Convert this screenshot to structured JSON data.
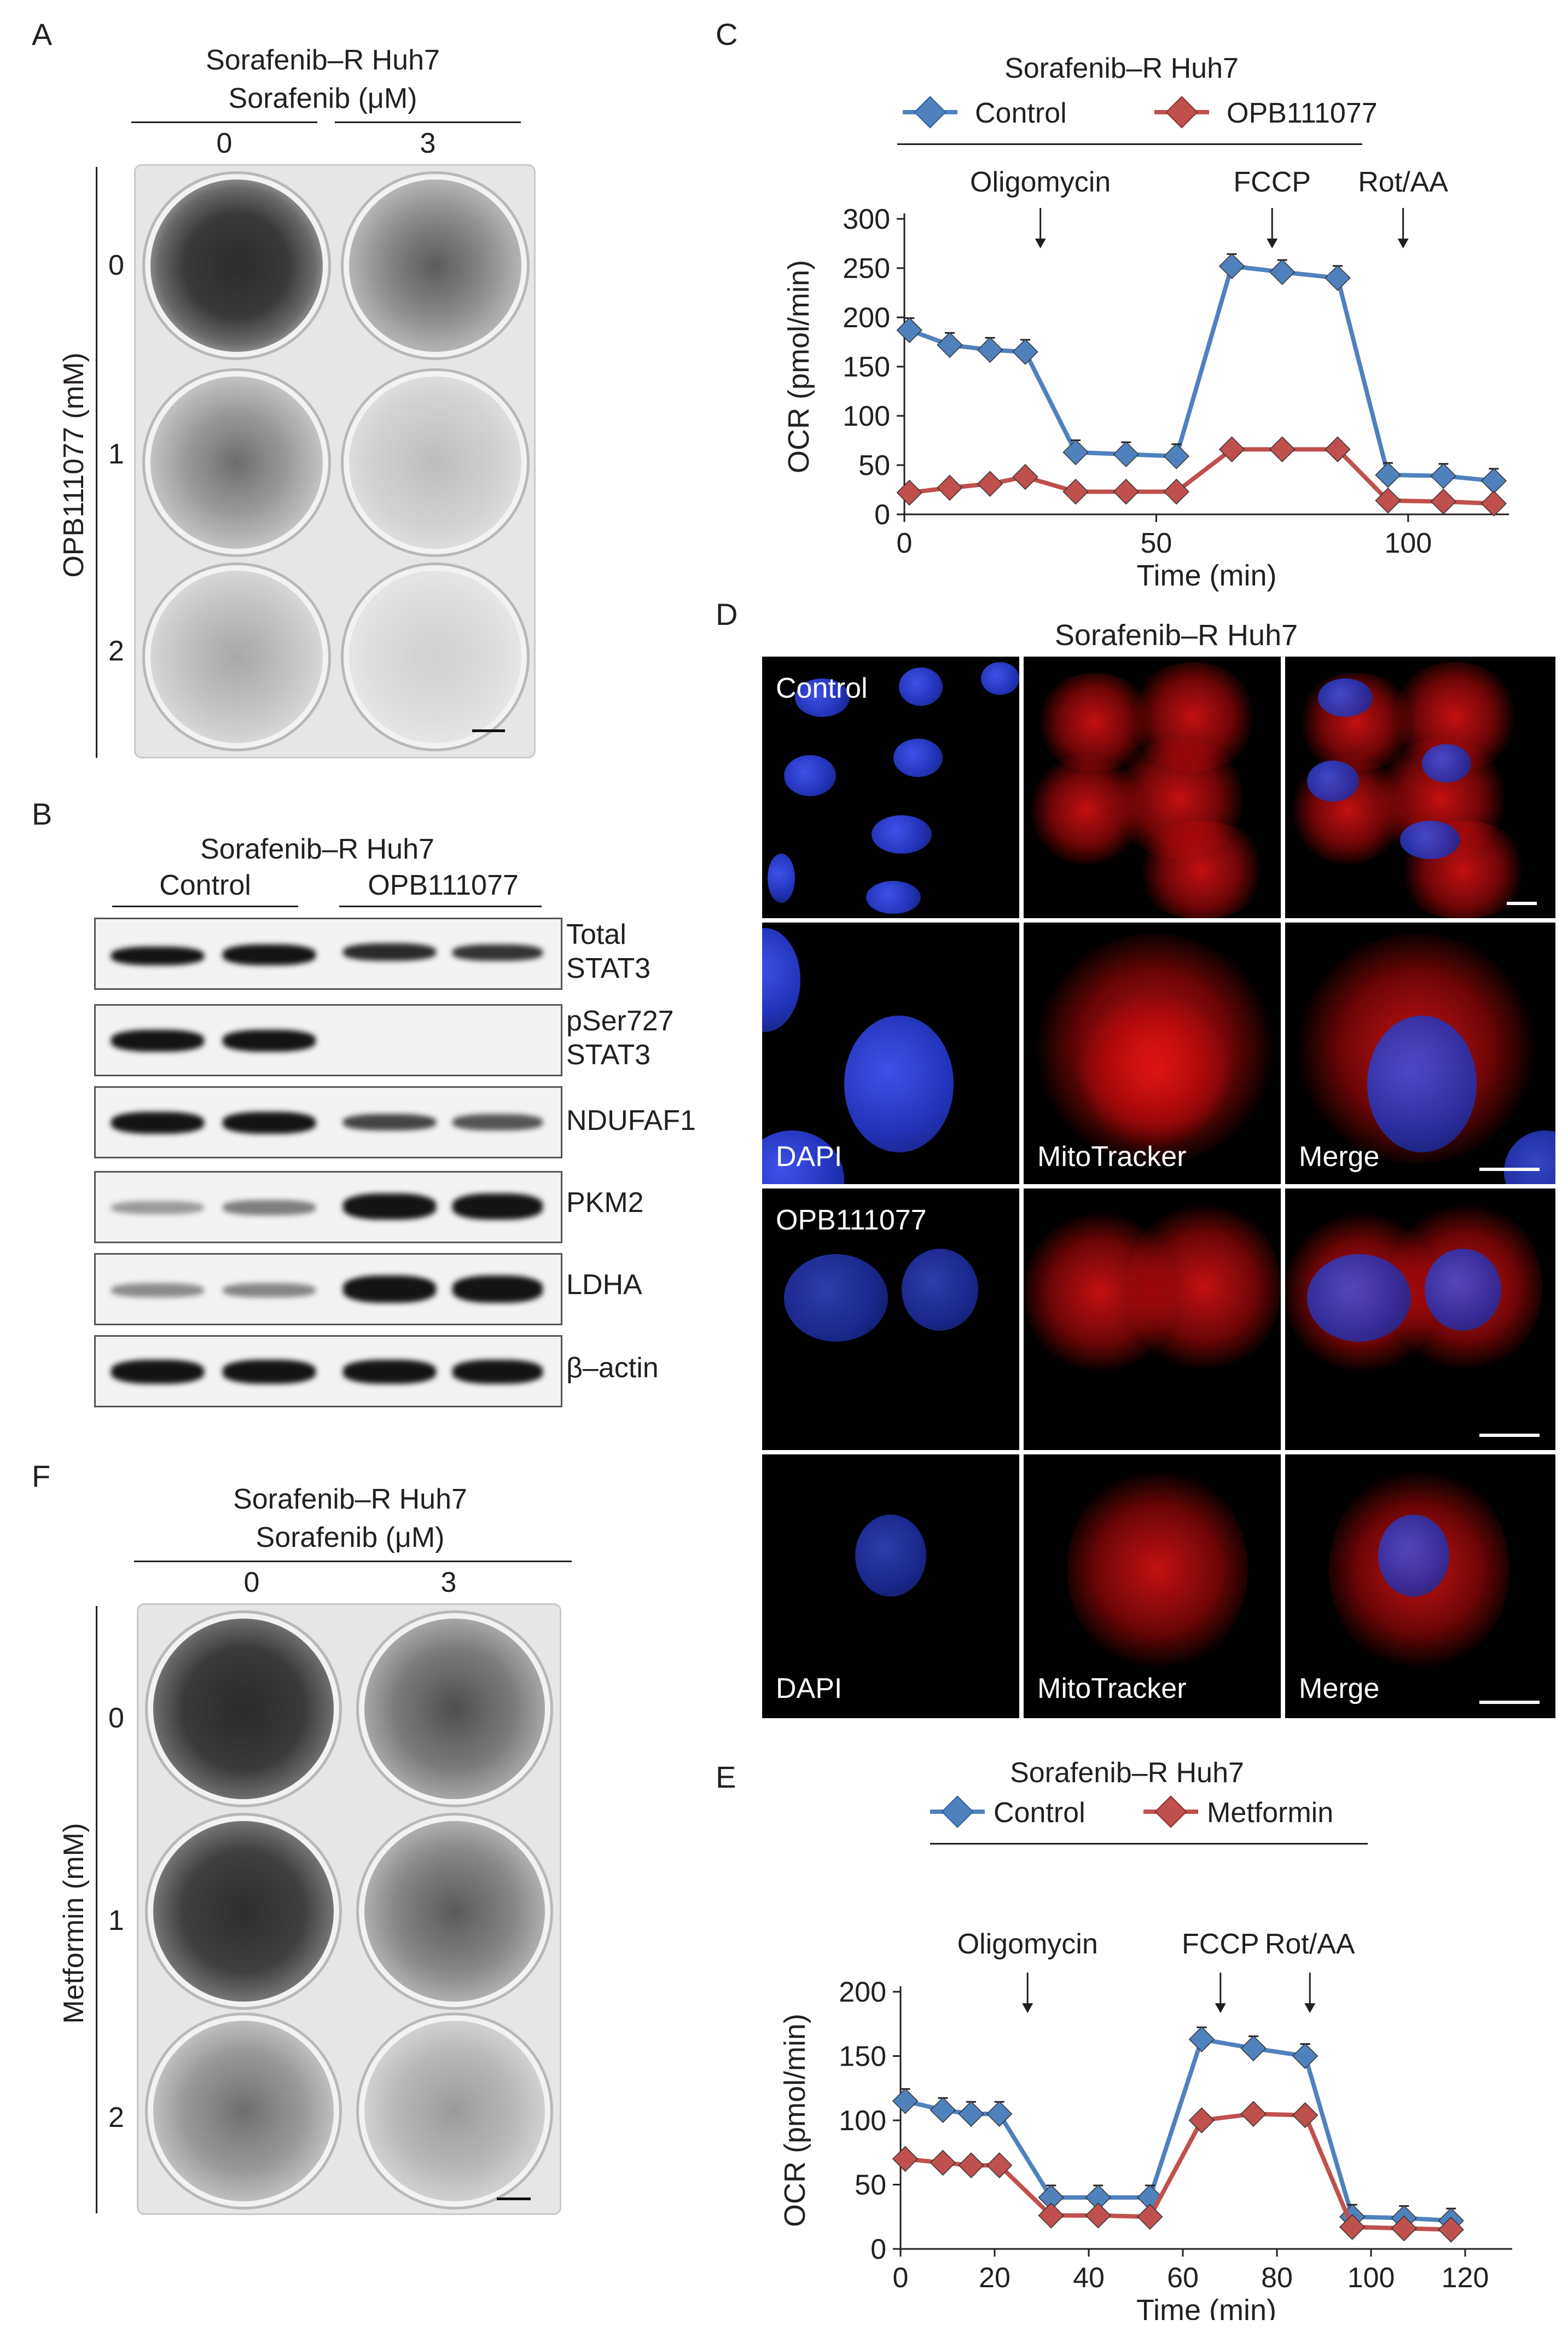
{
  "panelA": {
    "letter": "A",
    "cell_line": "Sorafenib–R Huh7",
    "treatment": "Sorafenib (μM)",
    "col0": "0",
    "col1": "3",
    "row_axis": "OPB111077 (mM)",
    "rows": [
      "0",
      "1",
      "2"
    ]
  },
  "panelB": {
    "letter": "B",
    "cell_line": "Sorafenib–R Huh7",
    "group1": "Control",
    "group2": "OPB111077",
    "blots": [
      {
        "line1": "Total",
        "line2": "STAT3"
      },
      {
        "line1": "pSer727",
        "line2": "STAT3"
      },
      {
        "line1": "NDUFAF1",
        "line2": ""
      },
      {
        "line1": "PKM2",
        "line2": ""
      },
      {
        "line1": "LDHA",
        "line2": ""
      },
      {
        "line1": "β–actin",
        "line2": ""
      }
    ]
  },
  "panelC": {
    "letter": "C",
    "cell_line": "Sorafenib–R Huh7",
    "legend": [
      "Control",
      "OPB111077"
    ],
    "annotations": [
      "Oligomycin",
      "FCCP",
      "Rot/AA"
    ],
    "chart_data": {
      "type": "line",
      "xlabel": "Time (min)",
      "ylabel": "OCR (pmol/min)",
      "xlim": [
        0,
        120
      ],
      "ylim": [
        0,
        300
      ],
      "xticks": [
        "0",
        "50",
        "100"
      ],
      "yticks": [
        "0",
        "50",
        "100",
        "150",
        "200",
        "250",
        "300"
      ],
      "x": [
        1,
        9,
        17,
        24,
        34,
        44,
        54,
        65,
        75,
        86,
        96,
        107,
        117
      ],
      "series": [
        {
          "name": "Control",
          "color": "#4f81bd",
          "values": [
            187,
            172,
            167,
            165,
            63,
            61,
            59,
            252,
            246,
            240,
            40,
            39,
            34
          ]
        },
        {
          "name": "OPB111077",
          "color": "#c0504d",
          "values": [
            22,
            27,
            31,
            38,
            23,
            23,
            23,
            66,
            66,
            66,
            14,
            13,
            11
          ]
        }
      ]
    }
  },
  "panelD": {
    "letter": "D",
    "cell_line": "Sorafenib–R Huh7",
    "group1": "Control",
    "group2": "OPB111077",
    "channels": [
      "DAPI",
      "MitoTracker",
      "Merge"
    ]
  },
  "panelE": {
    "letter": "E",
    "cell_line": "Sorafenib–R Huh7",
    "legend": [
      "Control",
      "Metformin"
    ],
    "annotations": [
      "Oligomycin",
      "FCCP",
      "Rot/AA"
    ],
    "chart_data": {
      "type": "line",
      "xlabel": "Time (min)",
      "ylabel": "OCR (pmol/min)",
      "xlim": [
        0,
        130
      ],
      "ylim": [
        0,
        200
      ],
      "xticks": [
        "0",
        "20",
        "40",
        "60",
        "80",
        "100",
        "120"
      ],
      "yticks": [
        "0",
        "50",
        "100",
        "150",
        "200"
      ],
      "x": [
        1,
        9,
        15,
        21,
        32,
        42,
        53,
        64,
        75,
        86,
        96,
        107,
        117
      ],
      "series": [
        {
          "name": "Control",
          "color": "#4f81bd",
          "values": [
            115,
            108,
            105,
            105,
            40,
            40,
            40,
            163,
            156,
            150,
            25,
            24,
            22
          ]
        },
        {
          "name": "Metformin",
          "color": "#c0504d",
          "values": [
            70,
            67,
            65,
            65,
            26,
            26,
            25,
            100,
            105,
            104,
            17,
            16,
            15
          ]
        }
      ]
    }
  },
  "panelF": {
    "letter": "F",
    "cell_line": "Sorafenib–R Huh7",
    "treatment": "Sorafenib (μM)",
    "col0": "0",
    "col1": "3",
    "row_axis": "Metformin (mM)",
    "rows": [
      "0",
      "1",
      "2"
    ]
  }
}
